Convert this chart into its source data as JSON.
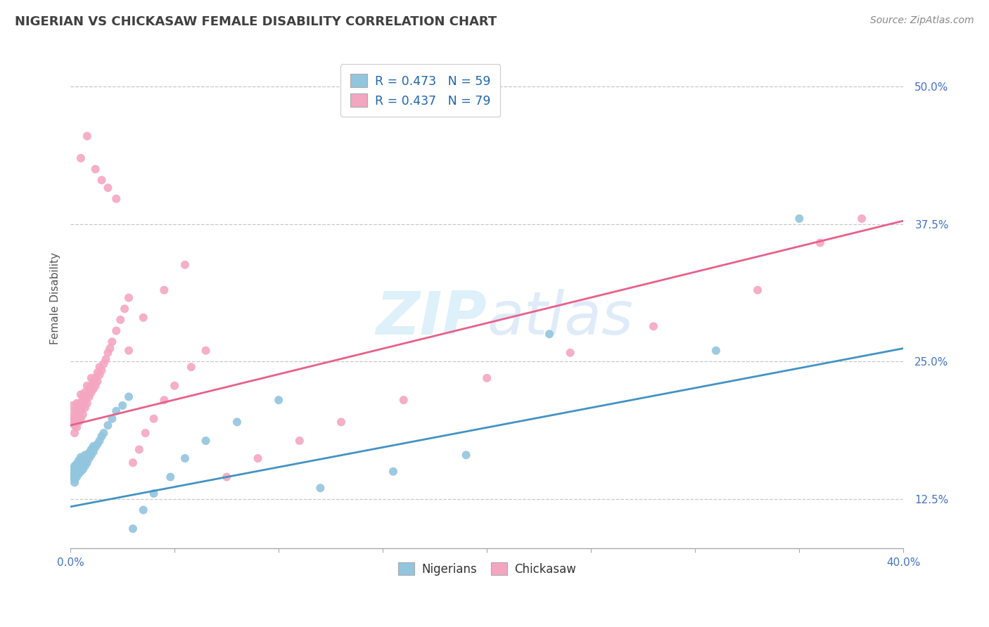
{
  "title": "NIGERIAN VS CHICKASAW FEMALE DISABILITY CORRELATION CHART",
  "source": "Source: ZipAtlas.com",
  "ylabel": "Female Disability",
  "xlim": [
    0.0,
    0.4
  ],
  "ylim": [
    0.08,
    0.535
  ],
  "yticks": [
    0.125,
    0.25,
    0.375,
    0.5
  ],
  "ytick_labels": [
    "12.5%",
    "25.0%",
    "37.5%",
    "50.0%"
  ],
  "xtick_labels_show": [
    "0.0%",
    "40.0%"
  ],
  "nigerians_R": 0.473,
  "nigerians_N": 59,
  "chickasaw_R": 0.437,
  "chickasaw_N": 79,
  "blue_color": "#92c5de",
  "pink_color": "#f4a6c0",
  "blue_line_color": "#4393c3",
  "pink_line_color": "#e8608a",
  "legend_R_color": "#2166ac",
  "background_color": "#ffffff",
  "grid_color": "#c8c8c8",
  "blue_line_x0": 0.0,
  "blue_line_y0": 0.118,
  "blue_line_x1": 0.4,
  "blue_line_y1": 0.262,
  "pink_line_x0": 0.0,
  "pink_line_y0": 0.192,
  "pink_line_x1": 0.4,
  "pink_line_y1": 0.378,
  "nig_x": [
    0.001,
    0.001,
    0.001,
    0.001,
    0.002,
    0.002,
    0.002,
    0.002,
    0.002,
    0.003,
    0.003,
    0.003,
    0.003,
    0.004,
    0.004,
    0.004,
    0.004,
    0.005,
    0.005,
    0.005,
    0.005,
    0.006,
    0.006,
    0.006,
    0.007,
    0.007,
    0.007,
    0.008,
    0.008,
    0.009,
    0.009,
    0.01,
    0.01,
    0.011,
    0.011,
    0.012,
    0.013,
    0.014,
    0.015,
    0.016,
    0.018,
    0.02,
    0.022,
    0.025,
    0.028,
    0.03,
    0.035,
    0.04,
    0.048,
    0.055,
    0.065,
    0.08,
    0.1,
    0.12,
    0.155,
    0.19,
    0.23,
    0.31,
    0.35
  ],
  "nig_y": [
    0.145,
    0.148,
    0.15,
    0.152,
    0.14,
    0.143,
    0.147,
    0.15,
    0.155,
    0.145,
    0.148,
    0.152,
    0.157,
    0.148,
    0.152,
    0.157,
    0.16,
    0.15,
    0.153,
    0.157,
    0.163,
    0.152,
    0.158,
    0.162,
    0.155,
    0.16,
    0.165,
    0.158,
    0.163,
    0.162,
    0.167,
    0.165,
    0.17,
    0.168,
    0.173,
    0.172,
    0.175,
    0.178,
    0.182,
    0.185,
    0.192,
    0.198,
    0.205,
    0.21,
    0.218,
    0.098,
    0.115,
    0.13,
    0.145,
    0.162,
    0.178,
    0.195,
    0.215,
    0.135,
    0.15,
    0.165,
    0.275,
    0.26,
    0.38
  ],
  "chick_x": [
    0.001,
    0.001,
    0.001,
    0.002,
    0.002,
    0.002,
    0.002,
    0.003,
    0.003,
    0.003,
    0.003,
    0.004,
    0.004,
    0.004,
    0.005,
    0.005,
    0.005,
    0.005,
    0.006,
    0.006,
    0.006,
    0.007,
    0.007,
    0.007,
    0.008,
    0.008,
    0.008,
    0.009,
    0.009,
    0.01,
    0.01,
    0.01,
    0.011,
    0.011,
    0.012,
    0.012,
    0.013,
    0.013,
    0.014,
    0.014,
    0.015,
    0.016,
    0.017,
    0.018,
    0.019,
    0.02,
    0.022,
    0.024,
    0.026,
    0.028,
    0.03,
    0.033,
    0.036,
    0.04,
    0.045,
    0.05,
    0.058,
    0.065,
    0.075,
    0.09,
    0.11,
    0.13,
    0.16,
    0.2,
    0.24,
    0.28,
    0.33,
    0.36,
    0.38,
    0.005,
    0.008,
    0.012,
    0.015,
    0.018,
    0.022,
    0.028,
    0.035,
    0.045,
    0.055
  ],
  "chick_y": [
    0.195,
    0.2,
    0.21,
    0.185,
    0.192,
    0.198,
    0.205,
    0.19,
    0.198,
    0.205,
    0.212,
    0.195,
    0.202,
    0.21,
    0.198,
    0.205,
    0.213,
    0.22,
    0.202,
    0.21,
    0.218,
    0.208,
    0.215,
    0.222,
    0.212,
    0.22,
    0.228,
    0.218,
    0.225,
    0.222,
    0.228,
    0.235,
    0.225,
    0.232,
    0.228,
    0.235,
    0.232,
    0.24,
    0.238,
    0.245,
    0.242,
    0.248,
    0.252,
    0.258,
    0.262,
    0.268,
    0.278,
    0.288,
    0.298,
    0.308,
    0.158,
    0.17,
    0.185,
    0.198,
    0.215,
    0.228,
    0.245,
    0.26,
    0.145,
    0.162,
    0.178,
    0.195,
    0.215,
    0.235,
    0.258,
    0.282,
    0.315,
    0.358,
    0.38,
    0.435,
    0.455,
    0.425,
    0.415,
    0.408,
    0.398,
    0.26,
    0.29,
    0.315,
    0.338
  ]
}
